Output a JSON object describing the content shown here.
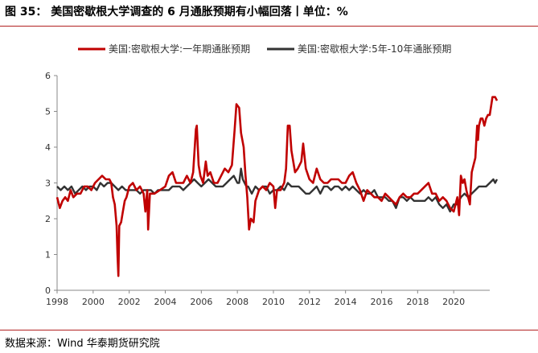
{
  "title": "图 35：  美国密歇根大学调查的 6 月通胀预期有小幅回落丨单位：%",
  "source": "数据来源：Wind  华泰期货研究院",
  "colors": {
    "one_year": "#c00000",
    "five_ten_year": "#333333",
    "rule": "#b22222"
  },
  "chart_data": {
    "type": "line",
    "ylim": [
      0,
      6
    ],
    "xlim": [
      1998,
      2022
    ],
    "yticks": [
      "0",
      "1",
      "2",
      "3",
      "4",
      "5",
      "6"
    ],
    "xticks": [
      "1998",
      "2000",
      "2002",
      "2004",
      "2006",
      "2008",
      "2010",
      "2012",
      "2014",
      "2016",
      "2018",
      "2020"
    ],
    "legend_position": "top",
    "series": [
      {
        "name": "美国:密歇根大学:一年期通胀预期",
        "color": "#c00000",
        "points": [
          [
            1998.0,
            2.6
          ],
          [
            1998.15,
            2.3
          ],
          [
            1998.3,
            2.5
          ],
          [
            1998.45,
            2.6
          ],
          [
            1998.6,
            2.5
          ],
          [
            1998.75,
            2.8
          ],
          [
            1998.9,
            2.6
          ],
          [
            1999.1,
            2.7
          ],
          [
            1999.3,
            2.7
          ],
          [
            1999.5,
            2.9
          ],
          [
            1999.7,
            2.9
          ],
          [
            1999.9,
            2.8
          ],
          [
            2000.1,
            3.0
          ],
          [
            2000.3,
            3.1
          ],
          [
            2000.5,
            3.2
          ],
          [
            2000.7,
            3.1
          ],
          [
            2000.9,
            3.1
          ],
          [
            2001.0,
            3.0
          ],
          [
            2001.1,
            2.6
          ],
          [
            2001.2,
            2.4
          ],
          [
            2001.3,
            1.8
          ],
          [
            2001.35,
            1.0
          ],
          [
            2001.4,
            0.4
          ],
          [
            2001.45,
            1.8
          ],
          [
            2001.55,
            1.9
          ],
          [
            2001.65,
            2.2
          ],
          [
            2001.75,
            2.5
          ],
          [
            2001.85,
            2.6
          ],
          [
            2002.0,
            2.9
          ],
          [
            2002.2,
            3.0
          ],
          [
            2002.4,
            2.8
          ],
          [
            2002.6,
            2.9
          ],
          [
            2002.8,
            2.7
          ],
          [
            2002.9,
            2.2
          ],
          [
            2003.0,
            2.8
          ],
          [
            2003.05,
            1.7
          ],
          [
            2003.15,
            2.7
          ],
          [
            2003.4,
            2.7
          ],
          [
            2003.7,
            2.8
          ],
          [
            2004.0,
            2.9
          ],
          [
            2004.2,
            3.2
          ],
          [
            2004.4,
            3.3
          ],
          [
            2004.6,
            3.0
          ],
          [
            2004.8,
            3.0
          ],
          [
            2005.0,
            3.0
          ],
          [
            2005.2,
            3.2
          ],
          [
            2005.4,
            3.0
          ],
          [
            2005.55,
            3.3
          ],
          [
            2005.7,
            4.5
          ],
          [
            2005.75,
            4.6
          ],
          [
            2005.85,
            3.5
          ],
          [
            2005.95,
            3.2
          ],
          [
            2006.1,
            3.0
          ],
          [
            2006.25,
            3.6
          ],
          [
            2006.35,
            3.2
          ],
          [
            2006.5,
            3.3
          ],
          [
            2006.7,
            3.0
          ],
          [
            2006.9,
            3.0
          ],
          [
            2007.1,
            3.2
          ],
          [
            2007.3,
            3.4
          ],
          [
            2007.5,
            3.3
          ],
          [
            2007.7,
            3.5
          ],
          [
            2007.85,
            4.5
          ],
          [
            2007.95,
            5.2
          ],
          [
            2008.1,
            5.1
          ],
          [
            2008.2,
            4.4
          ],
          [
            2008.35,
            4.0
          ],
          [
            2008.45,
            3.2
          ],
          [
            2008.55,
            2.6
          ],
          [
            2008.65,
            1.7
          ],
          [
            2008.75,
            2.0
          ],
          [
            2008.9,
            1.9
          ],
          [
            2009.0,
            2.5
          ],
          [
            2009.2,
            2.8
          ],
          [
            2009.4,
            2.9
          ],
          [
            2009.6,
            2.8
          ],
          [
            2009.8,
            3.0
          ],
          [
            2010.0,
            2.9
          ],
          [
            2010.1,
            2.3
          ],
          [
            2010.2,
            2.8
          ],
          [
            2010.4,
            2.8
          ],
          [
            2010.6,
            3.0
          ],
          [
            2010.7,
            3.4
          ],
          [
            2010.8,
            4.6
          ],
          [
            2010.9,
            4.6
          ],
          [
            2011.0,
            3.9
          ],
          [
            2011.2,
            3.3
          ],
          [
            2011.35,
            3.4
          ],
          [
            2011.55,
            3.6
          ],
          [
            2011.65,
            4.1
          ],
          [
            2011.8,
            3.4
          ],
          [
            2012.0,
            3.1
          ],
          [
            2012.2,
            3.0
          ],
          [
            2012.4,
            3.4
          ],
          [
            2012.6,
            3.1
          ],
          [
            2012.8,
            3.0
          ],
          [
            2013.0,
            3.0
          ],
          [
            2013.2,
            3.1
          ],
          [
            2013.4,
            3.1
          ],
          [
            2013.6,
            3.1
          ],
          [
            2013.8,
            3.0
          ],
          [
            2014.0,
            3.0
          ],
          [
            2014.2,
            3.2
          ],
          [
            2014.4,
            3.3
          ],
          [
            2014.6,
            3.0
          ],
          [
            2014.8,
            2.8
          ],
          [
            2015.0,
            2.5
          ],
          [
            2015.2,
            2.8
          ],
          [
            2015.4,
            2.7
          ],
          [
            2015.6,
            2.6
          ],
          [
            2015.8,
            2.6
          ],
          [
            2016.0,
            2.5
          ],
          [
            2016.2,
            2.7
          ],
          [
            2016.4,
            2.6
          ],
          [
            2016.6,
            2.5
          ],
          [
            2016.8,
            2.4
          ],
          [
            2017.0,
            2.6
          ],
          [
            2017.2,
            2.7
          ],
          [
            2017.4,
            2.6
          ],
          [
            2017.6,
            2.6
          ],
          [
            2017.8,
            2.7
          ],
          [
            2018.0,
            2.7
          ],
          [
            2018.2,
            2.8
          ],
          [
            2018.4,
            2.9
          ],
          [
            2018.6,
            3.0
          ],
          [
            2018.8,
            2.7
          ],
          [
            2019.0,
            2.7
          ],
          [
            2019.2,
            2.5
          ],
          [
            2019.4,
            2.6
          ],
          [
            2019.6,
            2.5
          ],
          [
            2019.8,
            2.3
          ],
          [
            2020.0,
            2.2
          ],
          [
            2020.2,
            2.6
          ],
          [
            2020.3,
            2.1
          ],
          [
            2020.4,
            3.2
          ],
          [
            2020.5,
            3.0
          ],
          [
            2020.6,
            3.1
          ],
          [
            2020.7,
            2.8
          ],
          [
            2020.8,
            2.6
          ],
          [
            2020.9,
            2.4
          ],
          [
            2021.0,
            3.3
          ],
          [
            2021.1,
            3.5
          ],
          [
            2021.2,
            3.7
          ],
          [
            2021.3,
            4.6
          ],
          [
            2021.35,
            4.2
          ],
          [
            2021.4,
            4.6
          ],
          [
            2021.5,
            4.8
          ],
          [
            2021.6,
            4.8
          ],
          [
            2021.7,
            4.6
          ],
          [
            2021.8,
            4.8
          ],
          [
            2021.9,
            4.9
          ],
          [
            2022.0,
            4.9
          ],
          [
            2022.15,
            5.4
          ],
          [
            2022.3,
            5.4
          ],
          [
            2022.4,
            5.3
          ]
        ]
      },
      {
        "name": "美国:密歇根大学:5年-10年通胀预期",
        "color": "#333333",
        "points": [
          [
            1998.0,
            2.9
          ],
          [
            1998.2,
            2.8
          ],
          [
            1998.4,
            2.9
          ],
          [
            1998.6,
            2.8
          ],
          [
            1998.8,
            2.9
          ],
          [
            1999.0,
            2.7
          ],
          [
            1999.2,
            2.8
          ],
          [
            1999.4,
            2.9
          ],
          [
            1999.6,
            2.8
          ],
          [
            1999.8,
            2.9
          ],
          [
            2000.0,
            2.9
          ],
          [
            2000.2,
            2.8
          ],
          [
            2000.4,
            3.0
          ],
          [
            2000.6,
            2.9
          ],
          [
            2000.8,
            3.0
          ],
          [
            2001.0,
            3.0
          ],
          [
            2001.2,
            2.9
          ],
          [
            2001.4,
            2.8
          ],
          [
            2001.6,
            2.9
          ],
          [
            2001.8,
            2.8
          ],
          [
            2002.0,
            2.8
          ],
          [
            2002.2,
            2.8
          ],
          [
            2002.4,
            2.8
          ],
          [
            2002.6,
            2.7
          ],
          [
            2002.8,
            2.8
          ],
          [
            2003.0,
            2.8
          ],
          [
            2003.2,
            2.8
          ],
          [
            2003.4,
            2.7
          ],
          [
            2003.6,
            2.8
          ],
          [
            2003.8,
            2.8
          ],
          [
            2004.0,
            2.8
          ],
          [
            2004.2,
            2.8
          ],
          [
            2004.4,
            2.9
          ],
          [
            2004.6,
            2.9
          ],
          [
            2004.8,
            2.9
          ],
          [
            2005.0,
            2.8
          ],
          [
            2005.2,
            2.9
          ],
          [
            2005.4,
            3.0
          ],
          [
            2005.6,
            3.1
          ],
          [
            2005.8,
            3.0
          ],
          [
            2006.0,
            2.9
          ],
          [
            2006.2,
            3.0
          ],
          [
            2006.4,
            3.1
          ],
          [
            2006.6,
            3.0
          ],
          [
            2006.8,
            2.9
          ],
          [
            2007.0,
            2.9
          ],
          [
            2007.2,
            2.9
          ],
          [
            2007.4,
            3.0
          ],
          [
            2007.6,
            3.1
          ],
          [
            2007.8,
            3.2
          ],
          [
            2008.0,
            3.0
          ],
          [
            2008.1,
            3.0
          ],
          [
            2008.2,
            3.4
          ],
          [
            2008.3,
            3.1
          ],
          [
            2008.4,
            3.0
          ],
          [
            2008.5,
            2.9
          ],
          [
            2008.6,
            2.9
          ],
          [
            2008.7,
            2.8
          ],
          [
            2008.8,
            2.7
          ],
          [
            2008.9,
            2.8
          ],
          [
            2009.0,
            2.9
          ],
          [
            2009.2,
            2.8
          ],
          [
            2009.4,
            2.9
          ],
          [
            2009.6,
            2.9
          ],
          [
            2009.8,
            2.7
          ],
          [
            2010.0,
            2.8
          ],
          [
            2010.2,
            2.8
          ],
          [
            2010.4,
            2.9
          ],
          [
            2010.6,
            2.8
          ],
          [
            2010.8,
            3.0
          ],
          [
            2011.0,
            2.9
          ],
          [
            2011.2,
            2.9
          ],
          [
            2011.4,
            2.9
          ],
          [
            2011.6,
            2.8
          ],
          [
            2011.8,
            2.7
          ],
          [
            2012.0,
            2.7
          ],
          [
            2012.2,
            2.8
          ],
          [
            2012.4,
            2.9
          ],
          [
            2012.6,
            2.7
          ],
          [
            2012.8,
            2.9
          ],
          [
            2013.0,
            2.9
          ],
          [
            2013.2,
            2.8
          ],
          [
            2013.4,
            2.9
          ],
          [
            2013.6,
            2.9
          ],
          [
            2013.8,
            2.8
          ],
          [
            2014.0,
            2.9
          ],
          [
            2014.2,
            2.8
          ],
          [
            2014.4,
            2.9
          ],
          [
            2014.6,
            2.8
          ],
          [
            2014.8,
            2.7
          ],
          [
            2015.0,
            2.8
          ],
          [
            2015.2,
            2.7
          ],
          [
            2015.4,
            2.7
          ],
          [
            2015.6,
            2.8
          ],
          [
            2015.8,
            2.6
          ],
          [
            2016.0,
            2.6
          ],
          [
            2016.2,
            2.6
          ],
          [
            2016.4,
            2.5
          ],
          [
            2016.6,
            2.5
          ],
          [
            2016.8,
            2.3
          ],
          [
            2017.0,
            2.6
          ],
          [
            2017.2,
            2.6
          ],
          [
            2017.4,
            2.5
          ],
          [
            2017.6,
            2.6
          ],
          [
            2017.8,
            2.5
          ],
          [
            2018.0,
            2.5
          ],
          [
            2018.2,
            2.5
          ],
          [
            2018.4,
            2.5
          ],
          [
            2018.6,
            2.6
          ],
          [
            2018.8,
            2.5
          ],
          [
            2019.0,
            2.6
          ],
          [
            2019.2,
            2.4
          ],
          [
            2019.4,
            2.3
          ],
          [
            2019.6,
            2.4
          ],
          [
            2019.8,
            2.2
          ],
          [
            2020.0,
            2.4
          ],
          [
            2020.2,
            2.4
          ],
          [
            2020.4,
            2.6
          ],
          [
            2020.6,
            2.7
          ],
          [
            2020.8,
            2.6
          ],
          [
            2021.0,
            2.7
          ],
          [
            2021.2,
            2.8
          ],
          [
            2021.4,
            2.9
          ],
          [
            2021.6,
            2.9
          ],
          [
            2021.8,
            2.9
          ],
          [
            2022.0,
            3.0
          ],
          [
            2022.2,
            3.1
          ],
          [
            2022.3,
            3.0
          ],
          [
            2022.4,
            3.1
          ]
        ]
      }
    ]
  }
}
